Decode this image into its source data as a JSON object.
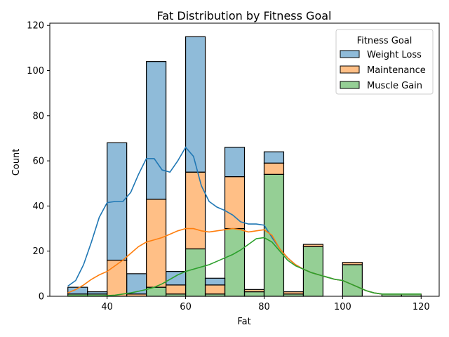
{
  "chart_data": {
    "type": "bar",
    "title": "Fat Distribution by Fitness Goal",
    "xlabel": "Fat",
    "ylabel": "Count",
    "xlim": [
      25.4,
      124.6
    ],
    "ylim": [
      0,
      121
    ],
    "xticks": [
      40,
      60,
      80,
      100,
      120
    ],
    "yticks": [
      0,
      20,
      40,
      60,
      80,
      100,
      120
    ],
    "stacked": true,
    "bin_edges": [
      30,
      35,
      40,
      45,
      50,
      55,
      60,
      65,
      70,
      75,
      80,
      85,
      90,
      95,
      100,
      105,
      110,
      115,
      120
    ],
    "legend": {
      "title": "Fitness Goal",
      "position": "upper right"
    },
    "series": [
      {
        "name": "Weight Loss",
        "color": "#1f77b4",
        "counts": [
          3,
          1,
          52,
          9,
          61,
          6,
          60,
          3,
          13,
          0,
          5,
          0,
          0,
          0,
          0,
          0,
          0,
          0
        ],
        "kde_x": [
          30,
          32,
          34,
          36,
          38,
          40,
          42,
          44,
          46,
          48,
          50,
          52,
          54,
          56,
          58,
          60,
          62,
          64,
          66,
          68,
          70,
          72,
          74,
          76,
          78,
          80,
          82,
          84,
          86,
          88,
          90,
          92,
          94,
          96,
          98,
          100,
          102,
          104,
          106,
          108,
          110,
          112,
          114,
          116,
          118,
          120
        ],
        "kde_y": [
          4.5,
          7,
          14,
          24,
          35,
          41.5,
          42,
          42,
          46,
          54,
          61,
          61,
          56,
          55,
          60,
          66,
          62,
          49,
          42,
          39.5,
          38,
          36,
          33,
          32,
          32,
          31.5,
          26,
          21,
          17,
          14,
          12,
          10.5,
          9.5,
          8.5,
          7.5,
          7,
          5.5,
          4,
          2.5,
          1.5,
          1,
          1,
          1,
          1,
          1,
          1
        ]
      },
      {
        "name": "Maintenance",
        "color": "#ff7f0e",
        "counts": [
          0,
          0,
          16,
          1,
          39,
          4,
          34,
          4,
          23,
          1,
          5,
          1,
          1,
          0,
          1,
          0,
          0,
          0
        ],
        "kde_x": [
          30,
          32,
          34,
          36,
          38,
          40,
          42,
          44,
          46,
          48,
          50,
          52,
          54,
          56,
          58,
          60,
          62,
          64,
          66,
          68,
          70,
          72,
          74,
          76,
          78,
          80,
          82,
          84,
          86,
          88,
          90,
          92,
          94,
          96,
          98,
          100,
          102,
          104,
          106,
          108,
          110,
          112,
          114,
          116,
          118,
          120
        ],
        "kde_y": [
          1.5,
          3,
          5,
          7.5,
          9.5,
          11,
          13.5,
          16,
          19,
          22,
          24,
          25,
          26,
          27.5,
          29,
          30,
          30,
          29,
          28.5,
          29,
          29.5,
          30,
          29.5,
          28.5,
          29,
          29.5,
          27,
          21,
          17,
          14,
          12,
          10.5,
          9.5,
          8.5,
          7.5,
          7,
          5.5,
          4,
          2.5,
          1.5,
          1,
          1,
          1,
          1,
          1,
          1
        ]
      },
      {
        "name": "Muscle Gain",
        "color": "#2ca02c",
        "counts": [
          1,
          1,
          0,
          0,
          4,
          1,
          21,
          1,
          30,
          2,
          54,
          1,
          22,
          0,
          14,
          0,
          1,
          1
        ],
        "kde_x": [
          30,
          32,
          34,
          36,
          38,
          40,
          42,
          44,
          46,
          48,
          50,
          52,
          54,
          56,
          58,
          60,
          62,
          64,
          66,
          68,
          70,
          72,
          74,
          76,
          78,
          80,
          82,
          84,
          86,
          88,
          90,
          92,
          94,
          96,
          98,
          100,
          102,
          104,
          106,
          108,
          110,
          112,
          114,
          116,
          118,
          120
        ],
        "kde_y": [
          0.2,
          0.2,
          0.2,
          0.2,
          0.2,
          0.3,
          0.5,
          1,
          1.5,
          2.2,
          3,
          4,
          5.5,
          7.5,
          9.5,
          11,
          12,
          13,
          14,
          15.5,
          17,
          18.5,
          20.5,
          23,
          25.5,
          26,
          24,
          20,
          16,
          13.5,
          12,
          10.5,
          9.5,
          8.5,
          7.5,
          7,
          5.5,
          4,
          2.5,
          1.5,
          1,
          1,
          1,
          1,
          1,
          1
        ]
      }
    ]
  }
}
